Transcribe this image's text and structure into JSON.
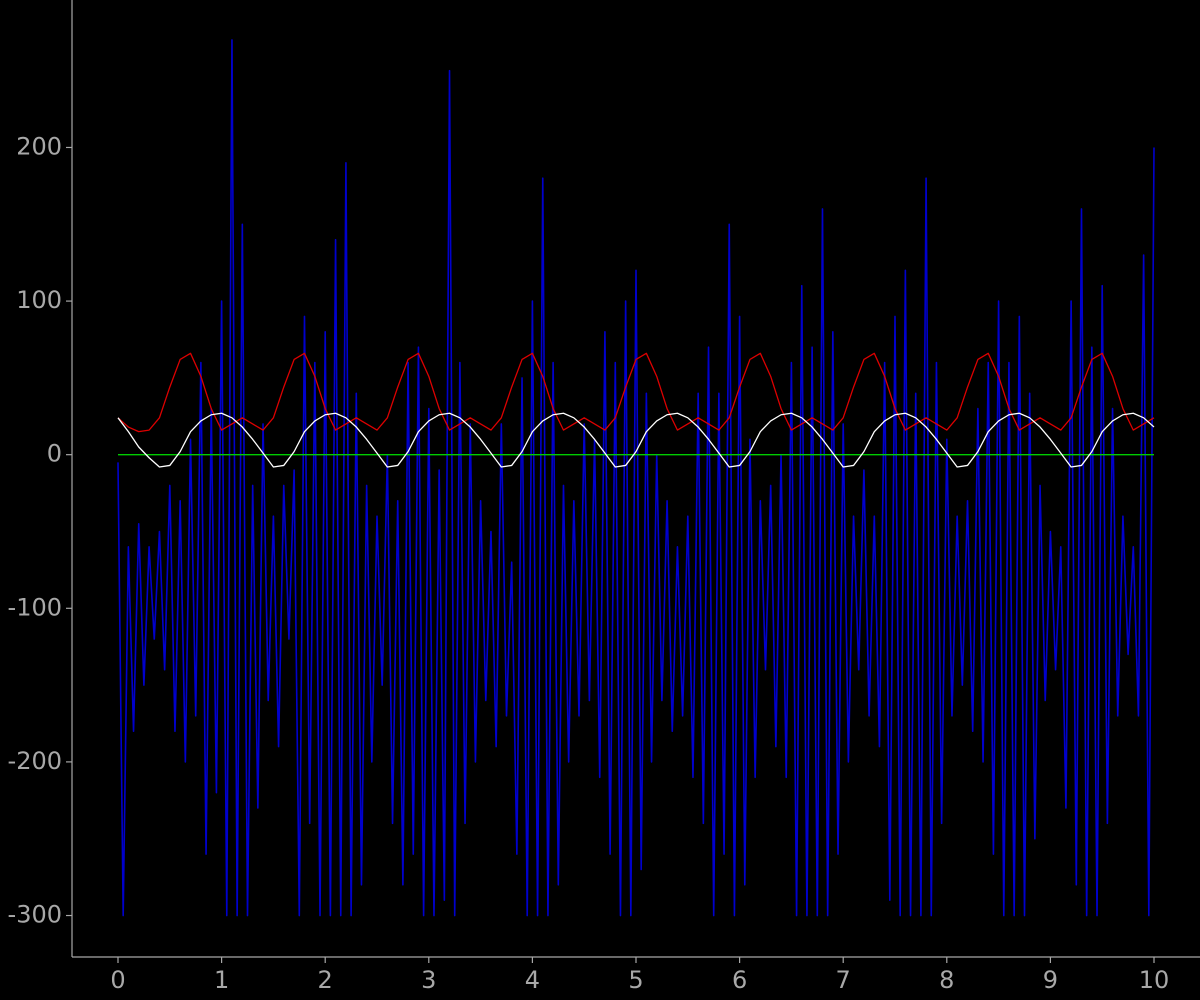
{
  "chart_data": {
    "type": "line",
    "xlim": [
      -0.444,
      10.444
    ],
    "ylim": [
      -327,
      296
    ],
    "xticks": [
      0,
      1,
      2,
      3,
      4,
      5,
      6,
      7,
      8,
      9,
      10
    ],
    "yticks": [
      -300,
      -200,
      -100,
      0,
      100,
      200
    ],
    "x": [
      0,
      0.1,
      0.2,
      0.3,
      0.4,
      0.5,
      0.6,
      0.7,
      0.8,
      0.9,
      1,
      1.1,
      1.2,
      1.3,
      1.4,
      1.5,
      1.6,
      1.7,
      1.8,
      1.9,
      2,
      2.1,
      2.2,
      2.3,
      2.4,
      2.5,
      2.6,
      2.7,
      2.8,
      2.9,
      3,
      3.1,
      3.2,
      3.3,
      3.4,
      3.5,
      3.6,
      3.7,
      3.8,
      3.9,
      4,
      4.1,
      4.2,
      4.3,
      4.4,
      4.5,
      4.6,
      4.7,
      4.8,
      4.9,
      5,
      5.1,
      5.2,
      5.3,
      5.4,
      5.5,
      5.6,
      5.7,
      5.8,
      5.9,
      6,
      6.1,
      6.2,
      6.3,
      6.4,
      6.5,
      6.6,
      6.7,
      6.8,
      6.9,
      7,
      7.1,
      7.2,
      7.3,
      7.4,
      7.5,
      7.6,
      7.7,
      7.8,
      7.9,
      8,
      8.1,
      8.2,
      8.3,
      8.4,
      8.5,
      8.6,
      8.7,
      8.8,
      8.9,
      9,
      9.1,
      9.2,
      9.3,
      9.4,
      9.5,
      9.6,
      9.7,
      9.8,
      9.9,
      10
    ],
    "series": [
      {
        "color": "#0000cc",
        "x": [
          0,
          0.05,
          0.1,
          0.15,
          0.2,
          0.25,
          0.3,
          0.35,
          0.4,
          0.45,
          0.5,
          0.55,
          0.6,
          0.65,
          0.7,
          0.75,
          0.8,
          0.85,
          0.9,
          0.95,
          1,
          1.05,
          1.1,
          1.15,
          1.2,
          1.25,
          1.3,
          1.35,
          1.4,
          1.45,
          1.5,
          1.55,
          1.6,
          1.65,
          1.7,
          1.75,
          1.8,
          1.85,
          1.9,
          1.95,
          2,
          2.05,
          2.1,
          2.15,
          2.2,
          2.25,
          2.3,
          2.35,
          2.4,
          2.45,
          2.5,
          2.55,
          2.6,
          2.65,
          2.7,
          2.75,
          2.8,
          2.85,
          2.9,
          2.95,
          3,
          3.05,
          3.1,
          3.15,
          3.2,
          3.25,
          3.3,
          3.35,
          3.4,
          3.45,
          3.5,
          3.55,
          3.6,
          3.65,
          3.7,
          3.75,
          3.8,
          3.85,
          3.9,
          3.95,
          4,
          4.05,
          4.1,
          4.15,
          4.2,
          4.25,
          4.3,
          4.35,
          4.4,
          4.45,
          4.5,
          4.55,
          4.6,
          4.65,
          4.7,
          4.75,
          4.8,
          4.85,
          4.9,
          4.95,
          5,
          5.05,
          5.1,
          5.15,
          5.2,
          5.25,
          5.3,
          5.35,
          5.4,
          5.45,
          5.5,
          5.55,
          5.6,
          5.65,
          5.7,
          5.75,
          5.8,
          5.85,
          5.9,
          5.95,
          6,
          6.05,
          6.1,
          6.15,
          6.2,
          6.25,
          6.3,
          6.35,
          6.4,
          6.45,
          6.5,
          6.55,
          6.6,
          6.65,
          6.7,
          6.75,
          6.8,
          6.85,
          6.9,
          6.95,
          7,
          7.05,
          7.1,
          7.15,
          7.2,
          7.25,
          7.3,
          7.35,
          7.4,
          7.45,
          7.5,
          7.55,
          7.6,
          7.65,
          7.7,
          7.75,
          7.8,
          7.85,
          7.9,
          7.95,
          8,
          8.05,
          8.1,
          8.15,
          8.2,
          8.25,
          8.3,
          8.35,
          8.4,
          8.45,
          8.5,
          8.55,
          8.6,
          8.65,
          8.7,
          8.75,
          8.8,
          8.85,
          8.9,
          8.95,
          9,
          9.05,
          9.1,
          9.15,
          9.2,
          9.25,
          9.3,
          9.35,
          9.4,
          9.45,
          9.5,
          9.55,
          9.6,
          9.65,
          9.7,
          9.75,
          9.8,
          9.85,
          9.9,
          9.95,
          10
        ],
        "values": [
          -5,
          -300,
          -60,
          -180,
          -45,
          -150,
          -60,
          -120,
          -50,
          -140,
          -20,
          -180,
          -30,
          -200,
          10,
          -170,
          60,
          -260,
          30,
          -220,
          100,
          -300,
          270,
          -300,
          150,
          -300,
          -20,
          -230,
          20,
          -160,
          -40,
          -190,
          -20,
          -120,
          -10,
          -300,
          90,
          -240,
          60,
          -300,
          80,
          -300,
          140,
          -300,
          190,
          -300,
          40,
          -280,
          -20,
          -200,
          -40,
          -150,
          0,
          -240,
          -30,
          -280,
          60,
          -260,
          70,
          -300,
          30,
          -300,
          -10,
          -290,
          250,
          -300,
          60,
          -240,
          20,
          -200,
          -30,
          -160,
          -50,
          -190,
          20,
          -170,
          -70,
          -260,
          50,
          -300,
          100,
          -300,
          180,
          -300,
          60,
          -280,
          -20,
          -200,
          -30,
          -170,
          20,
          -160,
          10,
          -210,
          80,
          -260,
          60,
          -300,
          100,
          -300,
          120,
          -270,
          40,
          -200,
          0,
          -160,
          -30,
          -180,
          -60,
          -170,
          -40,
          -210,
          40,
          -240,
          70,
          -300,
          40,
          -260,
          150,
          -300,
          90,
          -280,
          10,
          -210,
          -30,
          -140,
          -20,
          -190,
          0,
          -210,
          60,
          -300,
          110,
          -300,
          70,
          -300,
          160,
          -300,
          80,
          -260,
          20,
          -200,
          -40,
          -140,
          -10,
          -170,
          -40,
          -190,
          60,
          -290,
          90,
          -300,
          120,
          -300,
          40,
          -300,
          180,
          -300,
          60,
          -240,
          10,
          -170,
          -40,
          -150,
          -30,
          -180,
          30,
          -200,
          60,
          -260,
          100,
          -300,
          60,
          -300,
          90,
          -300,
          40,
          -250,
          -20,
          -160,
          -50,
          -140,
          -60,
          -230,
          100,
          -280,
          160,
          -300,
          70,
          -300,
          110,
          -240,
          30,
          -170,
          -40,
          -130,
          -60,
          -170,
          130,
          -300,
          200
        ]
      },
      {
        "color": "#00cc00",
        "x": [
          0,
          10
        ],
        "values": [
          0,
          0
        ]
      },
      {
        "color": "#dd0000",
        "values": [
          24,
          18,
          15,
          16,
          24,
          44,
          62,
          66,
          51,
          30,
          16,
          20,
          24,
          20,
          16,
          24,
          44,
          62,
          66,
          51,
          30,
          16,
          20,
          24,
          20,
          16,
          24,
          44,
          62,
          66,
          51,
          30,
          16,
          20,
          24,
          20,
          16,
          24,
          44,
          62,
          66,
          51,
          30,
          16,
          20,
          24,
          20,
          16,
          24,
          44,
          62,
          66,
          51,
          30,
          16,
          20,
          24,
          20,
          16,
          24,
          44,
          62,
          66,
          51,
          30,
          16,
          20,
          24,
          20,
          16,
          24,
          44,
          62,
          66,
          51,
          30,
          16,
          20,
          24,
          20,
          16,
          24,
          44,
          62,
          66,
          51,
          30,
          16,
          20,
          24,
          20,
          16,
          24,
          44,
          62,
          66,
          51,
          30,
          16,
          20,
          24
        ]
      },
      {
        "color": "#ffffff",
        "values": [
          24,
          15,
          5,
          -2,
          -8,
          -7,
          2,
          15,
          22,
          26,
          27,
          24,
          18,
          10,
          1,
          -8,
          -7,
          2,
          15,
          22,
          26,
          27,
          24,
          18,
          10,
          1,
          -8,
          -7,
          2,
          15,
          22,
          26,
          27,
          24,
          18,
          10,
          1,
          -8,
          -7,
          2,
          15,
          22,
          26,
          27,
          24,
          18,
          10,
          1,
          -8,
          -7,
          2,
          15,
          22,
          26,
          27,
          24,
          18,
          10,
          1,
          -8,
          -7,
          2,
          15,
          22,
          26,
          27,
          24,
          18,
          10,
          1,
          -8,
          -7,
          2,
          15,
          22,
          26,
          27,
          24,
          18,
          10,
          1,
          -8,
          -7,
          2,
          15,
          22,
          26,
          27,
          24,
          18,
          10,
          1,
          -8,
          -7,
          2,
          15,
          22,
          26,
          27,
          24,
          18
        ]
      }
    ]
  }
}
